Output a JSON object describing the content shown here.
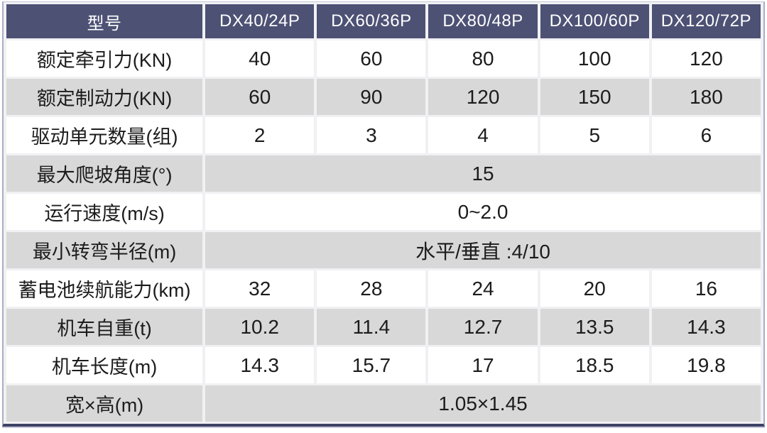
{
  "table": {
    "header": {
      "model_label": "型号",
      "columns": [
        "DX40/24P",
        "DX60/36P",
        "DX80/48P",
        "DX100/60P",
        "DX120/72P"
      ]
    },
    "rows": [
      {
        "label": "额定牵引力(KN)",
        "merged": false,
        "shade": "white",
        "values": [
          "40",
          "60",
          "80",
          "100",
          "120"
        ]
      },
      {
        "label": "额定制动力(KN)",
        "merged": false,
        "shade": "gray",
        "values": [
          "60",
          "90",
          "120",
          "150",
          "180"
        ]
      },
      {
        "label": "驱动单元数量(组)",
        "merged": false,
        "shade": "white",
        "values": [
          "2",
          "3",
          "4",
          "5",
          "6"
        ]
      },
      {
        "label": "最大爬坡角度(°)",
        "merged": true,
        "shade": "gray",
        "value": "15"
      },
      {
        "label": "运行速度(m/s)",
        "merged": true,
        "shade": "white",
        "value": "0~2.0"
      },
      {
        "label": "最小转弯半径(m)",
        "merged": true,
        "shade": "gray",
        "value": "水平/垂直 :4/10"
      },
      {
        "label": "蓄电池续航能力(km)",
        "merged": false,
        "shade": "white",
        "values": [
          "32",
          "28",
          "24",
          "20",
          "16"
        ]
      },
      {
        "label": "机车自重(t)",
        "merged": false,
        "shade": "gray",
        "values": [
          "10.2",
          "11.4",
          "12.7",
          "13.5",
          "14.3"
        ]
      },
      {
        "label": "机车长度(m)",
        "merged": false,
        "shade": "white",
        "values": [
          "14.3",
          "15.7",
          "17",
          "18.5",
          "19.8"
        ]
      },
      {
        "label": "宽×高(m)",
        "merged": true,
        "shade": "gray",
        "value": "1.05×1.45"
      }
    ],
    "colors": {
      "header_bg": "#4d5174",
      "header_text": "#ffffff",
      "row_gray": "#d8d8d8",
      "row_white": "#ffffff",
      "body_text": "#1c1c1c",
      "outer_border": "#a9aec9",
      "bottom_border": "#3e4164"
    }
  }
}
